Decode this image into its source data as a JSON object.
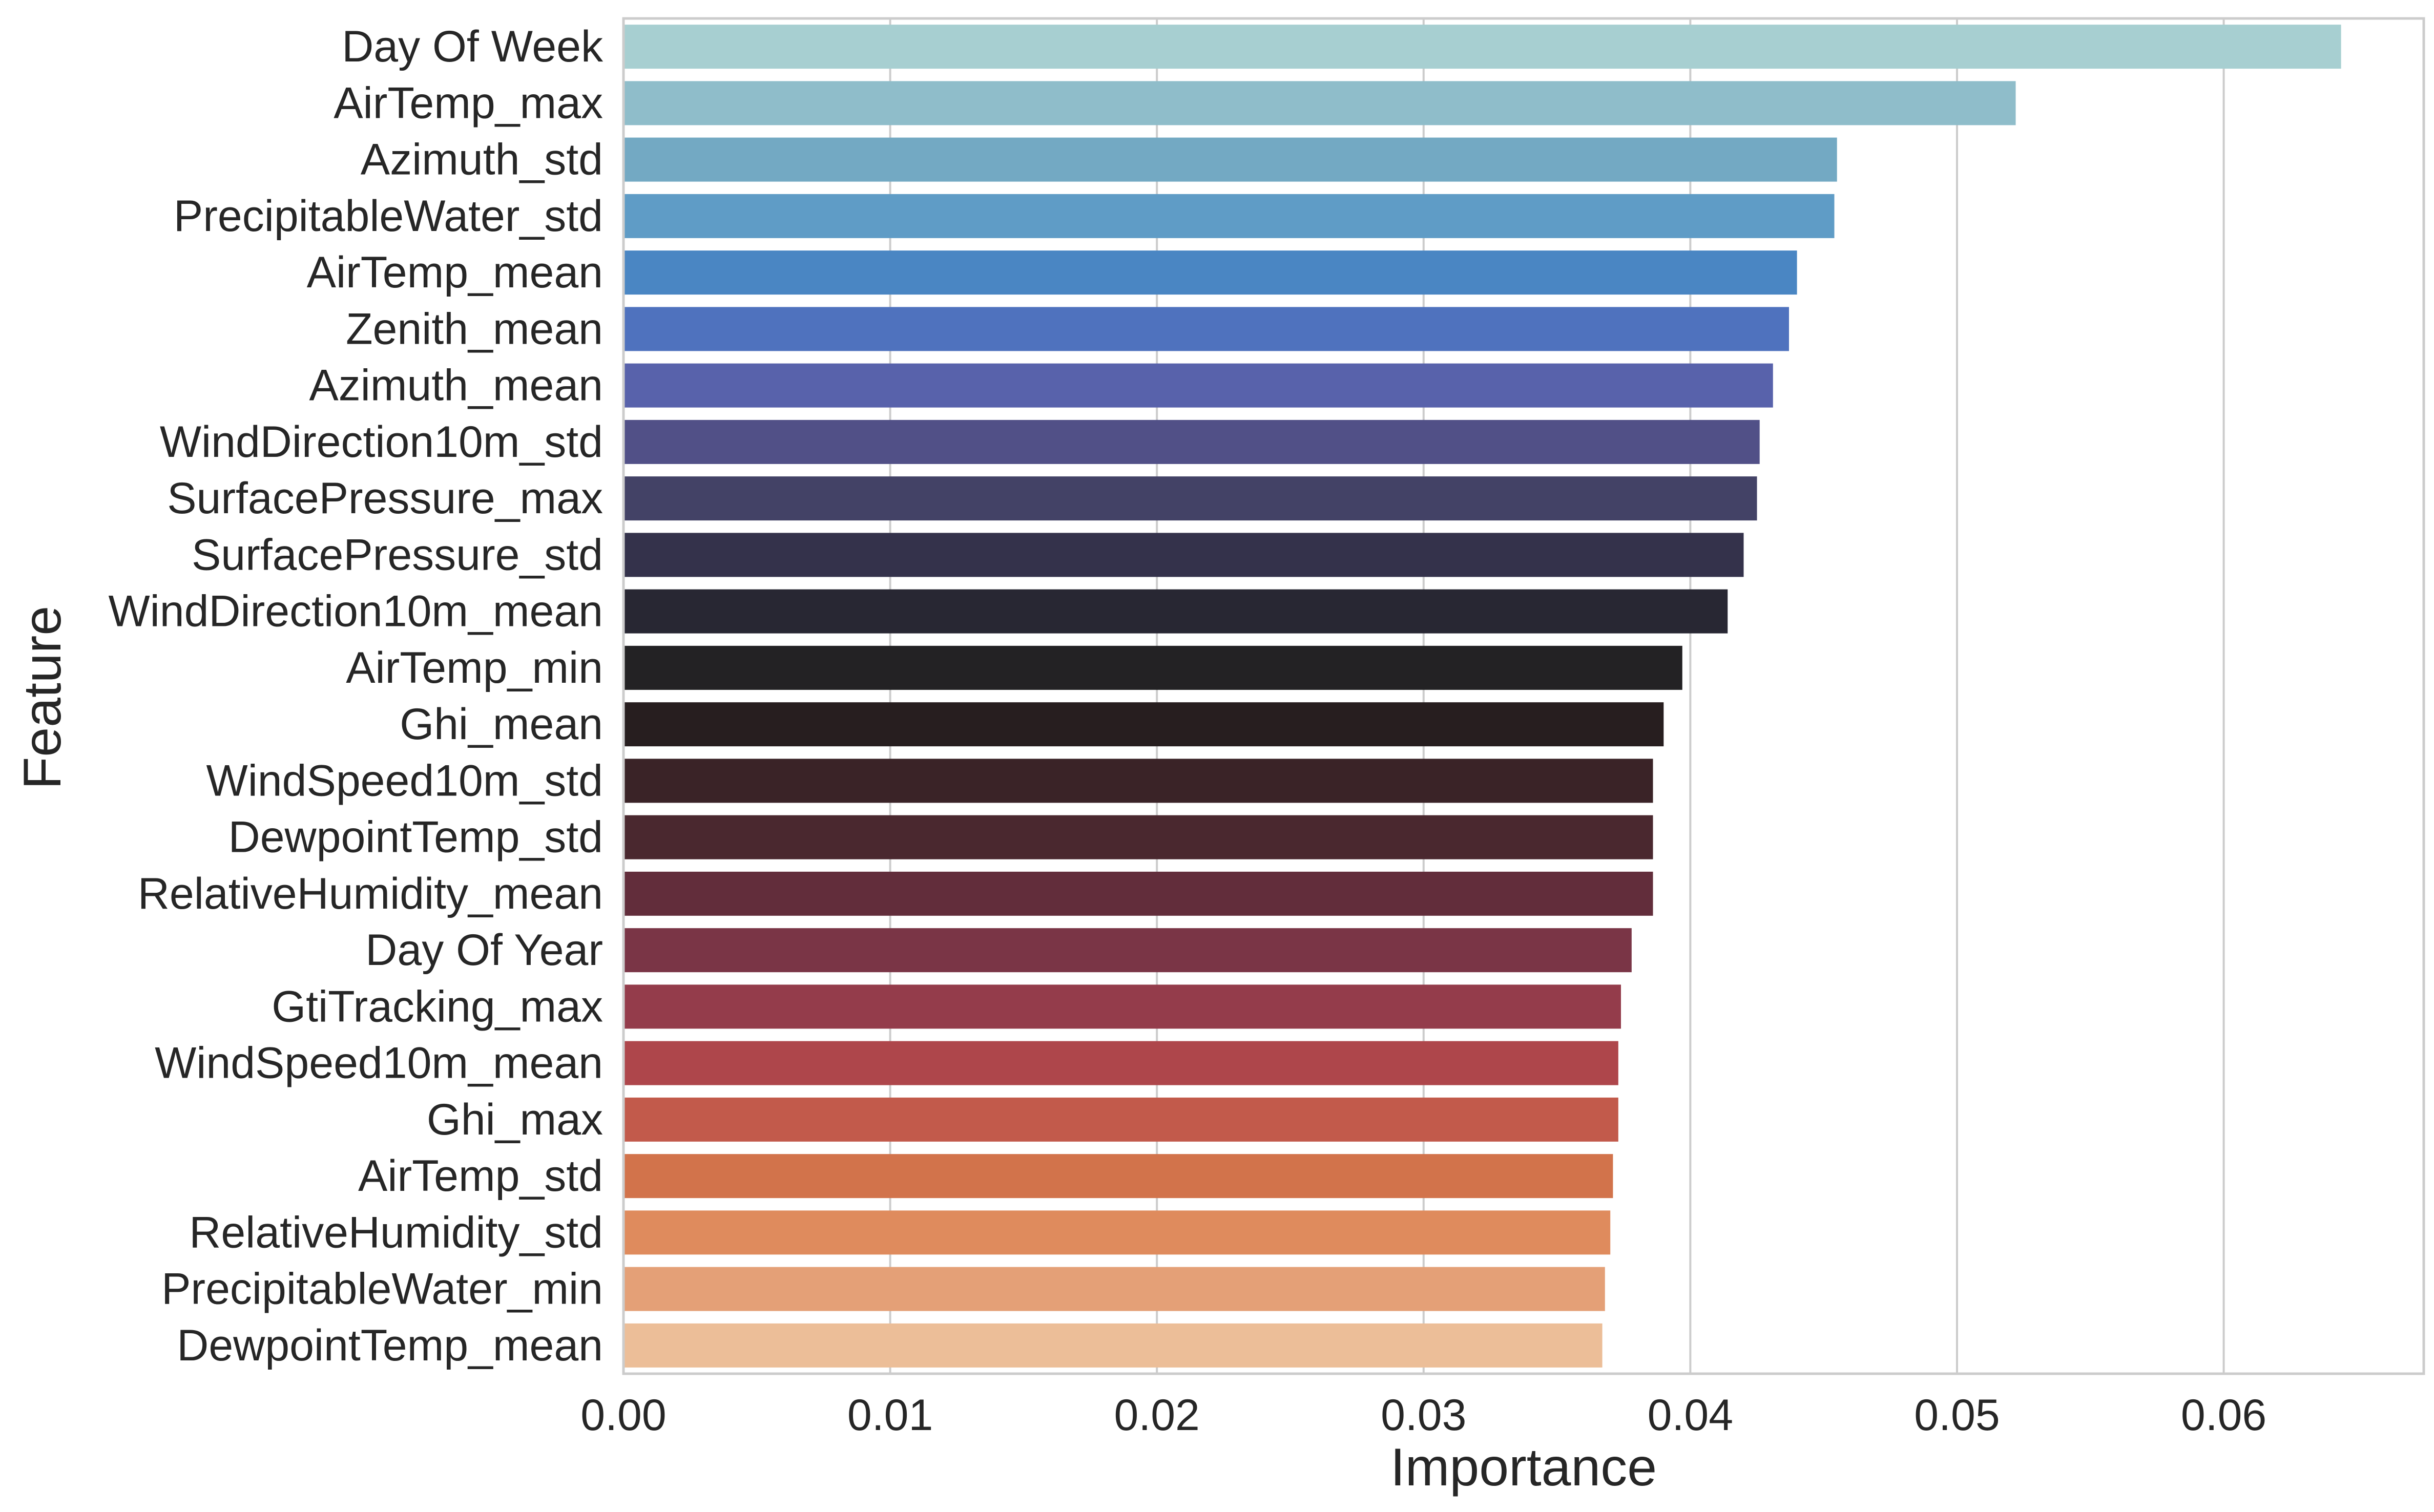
{
  "chart_data": {
    "type": "bar",
    "orientation": "horizontal",
    "xlabel": "Importance",
    "ylabel": "Feature",
    "xlim": [
      0,
      0.0675
    ],
    "xticks": [
      0.0,
      0.01,
      0.02,
      0.03,
      0.04,
      0.05,
      0.06
    ],
    "xtick_labels": [
      "0.00",
      "0.01",
      "0.02",
      "0.03",
      "0.04",
      "0.05",
      "0.06"
    ],
    "grid": "vertical",
    "categories": [
      "Day Of Week",
      "AirTemp_max",
      "Azimuth_std",
      "PrecipitableWater_std",
      "AirTemp_mean",
      "Zenith_mean",
      "Azimuth_mean",
      "WindDirection10m_std",
      "SurfacePressure_max",
      "SurfacePressure_std",
      "WindDirection10m_mean",
      "AirTemp_min",
      "Ghi_mean",
      "WindSpeed10m_std",
      "DewpointTemp_std",
      "RelativeHumidity_mean",
      "Day Of Year",
      "GtiTracking_max",
      "WindSpeed10m_mean",
      "Ghi_max",
      "AirTemp_std",
      "RelativeHumidity_std",
      "PrecipitableWater_min",
      "DewpointTemp_mean"
    ],
    "values": [
      0.0644,
      0.0522,
      0.0455,
      0.0454,
      0.044,
      0.0437,
      0.0431,
      0.0426,
      0.0425,
      0.042,
      0.0414,
      0.0397,
      0.039,
      0.0386,
      0.0386,
      0.0386,
      0.0378,
      0.0374,
      0.0373,
      0.0373,
      0.0371,
      0.037,
      0.0368,
      0.0367
    ],
    "colors": [
      "#a7cfd1",
      "#8fbdca",
      "#73a9c3",
      "#5f9cc6",
      "#4a86c3",
      "#4f72be",
      "#5862ab",
      "#515087",
      "#434266",
      "#34324b",
      "#282733",
      "#232224",
      "#271e1f",
      "#3a2327",
      "#4a282f",
      "#622d3b",
      "#7a3546",
      "#943c4b",
      "#ae464b",
      "#c25a4b",
      "#d2734b",
      "#df8b5d",
      "#e4a077",
      "#ecbe98"
    ]
  }
}
